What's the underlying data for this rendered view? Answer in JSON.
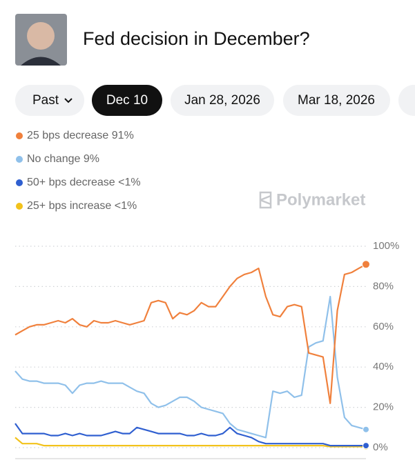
{
  "header": {
    "title": "Fed decision in December?"
  },
  "tabs": [
    "Past",
    "Dec 10",
    "Jan 28, 2026",
    "Mar 18, 2026"
  ],
  "watermark": "Polymarket",
  "chart_data": {
    "type": "line",
    "series": [
      {
        "name": "25 bps decrease",
        "legend_value": "91%",
        "color": "#f0803c",
        "values": [
          56,
          58,
          60,
          61,
          61,
          62,
          63,
          62,
          64,
          61,
          60,
          63,
          62,
          62,
          63,
          62,
          61,
          62,
          63,
          72,
          73,
          72,
          64,
          67,
          66,
          68,
          72,
          70,
          70,
          75,
          80,
          84,
          86,
          87,
          89,
          75,
          66,
          65,
          70,
          71,
          70,
          47,
          46,
          45,
          22,
          68,
          86,
          87,
          89,
          91
        ]
      },
      {
        "name": "No change",
        "legend_value": "9%",
        "color": "#8fc0ea",
        "values": [
          38,
          34,
          33,
          33,
          32,
          32,
          32,
          31,
          27,
          31,
          32,
          32,
          33,
          32,
          32,
          32,
          30,
          28,
          27,
          22,
          20,
          21,
          23,
          25,
          25,
          23,
          20,
          19,
          18,
          17,
          12,
          9,
          8,
          7,
          6,
          5,
          28,
          27,
          28,
          25,
          26,
          50,
          52,
          53,
          75,
          35,
          15,
          11,
          10,
          9
        ]
      },
      {
        "name": "50+ bps decrease",
        "legend_value": "<1%",
        "color": "#2f5fd0",
        "values": [
          12,
          7,
          7,
          7,
          7,
          6,
          6,
          7,
          6,
          7,
          6,
          6,
          6,
          7,
          8,
          7,
          7,
          10,
          9,
          8,
          7,
          7,
          7,
          7,
          6,
          6,
          7,
          6,
          6,
          7,
          10,
          7,
          6,
          5,
          3,
          2,
          2,
          2,
          2,
          2,
          2,
          2,
          2,
          2,
          1,
          1,
          1,
          1,
          1,
          1
        ]
      },
      {
        "name": "25+ bps increase",
        "legend_value": "<1%",
        "color": "#f2c21b",
        "values": [
          5,
          2,
          2,
          2,
          1,
          1,
          1,
          1,
          1,
          1,
          1,
          1,
          1,
          1,
          1,
          1,
          1,
          1,
          1,
          1,
          1,
          1,
          1,
          1,
          1,
          1,
          1,
          1,
          1,
          1,
          1,
          1,
          1,
          1,
          1,
          1,
          1,
          1,
          1,
          1,
          1,
          1,
          1,
          1,
          0.5,
          0.5,
          0.5,
          0.5,
          0.5,
          0.5
        ]
      }
    ],
    "ylim": [
      0,
      100
    ],
    "yticks": [
      {
        "value": 0,
        "label": "0%"
      },
      {
        "value": 20,
        "label": "20%"
      },
      {
        "value": 40,
        "label": "40%"
      },
      {
        "value": 60,
        "label": "60%"
      },
      {
        "value": 80,
        "label": "80%"
      },
      {
        "value": 100,
        "label": "100%"
      }
    ],
    "grid": true
  }
}
